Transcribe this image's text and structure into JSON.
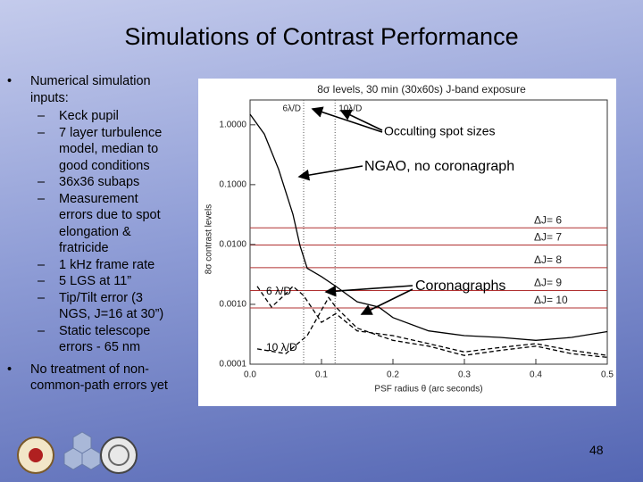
{
  "title": "Simulations of Contrast Performance",
  "bullets": [
    {
      "text": "Numerical simulation inputs:",
      "items": [
        "Keck pupil",
        "7 layer turbulence model, median to good conditions",
        "36x36 subaps",
        "Measurement errors due to spot elongation & fratricide",
        "1 kHz frame rate",
        "5 LGS at 11”",
        "Tip/Tilt error (3 NGS, J=16 at 30”)",
        "Static telescope errors - 65 nm"
      ]
    },
    {
      "text": "No treatment of non-common-path errors yet"
    }
  ],
  "chart_data": {
    "type": "line",
    "title": "8σ levels, 30 min (30x60s) J-band exposure",
    "x_label": "PSF radius θ (arc seconds)",
    "y_label": "8σ contrast levels",
    "log_y": true,
    "xlim": [
      0,
      0.5
    ],
    "ylim": [
      0.0001,
      2.6
    ],
    "xticks": [
      {
        "value": 0,
        "label": "0.0"
      },
      {
        "value": 0.1,
        "label": "0.1"
      },
      {
        "value": 0.2,
        "label": "0.2"
      },
      {
        "value": 0.3,
        "label": "0.3"
      },
      {
        "value": 0.4,
        "label": "0.4"
      },
      {
        "value": 0.5,
        "label": "0.5"
      }
    ],
    "yticks": [
      {
        "value": 1,
        "label": "1.0000"
      },
      {
        "value": 0.1,
        "label": "0.1000"
      },
      {
        "value": 0.01,
        "label": "0.0100"
      },
      {
        "value": 0.001,
        "label": "0.0010"
      },
      {
        "value": 0.0001,
        "label": "0.0001"
      }
    ],
    "series": [
      {
        "color": "#000000",
        "dash": "solid",
        "x": [
          0,
          0.02,
          0.04,
          0.06,
          0.07,
          0.08,
          0.1,
          0.12,
          0.15,
          0.18,
          0.2,
          0.25,
          0.3,
          0.35,
          0.4,
          0.45,
          0.5
        ],
        "values": [
          1.5,
          0.7,
          0.18,
          0.032,
          0.0095,
          0.004,
          0.0029,
          0.002,
          0.0011,
          0.0009,
          0.0006,
          0.00036,
          0.0003,
          0.00028,
          0.00025,
          0.00028,
          0.00035
        ]
      },
      {
        "color": "#000000",
        "dash": "dashed",
        "x": [
          0.01,
          0.03,
          0.05,
          0.06,
          0.075,
          0.1,
          0.12,
          0.15,
          0.2,
          0.25,
          0.3,
          0.35,
          0.4,
          0.45,
          0.5
        ],
        "values": [
          0.002,
          0.0009,
          0.0015,
          0.002,
          0.0014,
          0.0005,
          0.0007,
          0.00036,
          0.0003,
          0.00022,
          0.00016,
          0.00019,
          0.00022,
          0.00017,
          0.00014
        ]
      },
      {
        "color": "#000000",
        "dash": "dashed",
        "x": [
          0.01,
          0.05,
          0.08,
          0.1,
          0.11,
          0.12,
          0.15,
          0.2,
          0.25,
          0.3,
          0.35,
          0.4,
          0.45,
          0.5
        ],
        "values": [
          0.00018,
          0.00015,
          0.0003,
          0.0008,
          0.0013,
          0.0009,
          0.0004,
          0.00025,
          0.0002,
          0.00014,
          0.00017,
          0.0002,
          0.00015,
          0.00013
        ]
      }
    ],
    "spots": [
      {
        "x": 0.075,
        "label": "6λ/D"
      },
      {
        "x": 0.119,
        "label": "10λ/D"
      }
    ],
    "levels_color": "#b03030",
    "levels": [
      {
        "value": 0.019,
        "label": "ΔJ= 6"
      },
      {
        "value": 0.0098,
        "label": "ΔJ= 7"
      },
      {
        "value": 0.0041,
        "label": "ΔJ= 8"
      },
      {
        "value": 0.0017,
        "label": "ΔJ= 9"
      },
      {
        "value": 0.00087,
        "label": "ΔJ= 10"
      }
    ]
  },
  "annotations": {
    "occulting": "Occulting spot sizes",
    "ngao": "NGAO, no coronagraph",
    "coronagraphs": "Coronagraphs",
    "six": "6 λ/D",
    "ten": "10 λ/D"
  },
  "page_number": "48"
}
